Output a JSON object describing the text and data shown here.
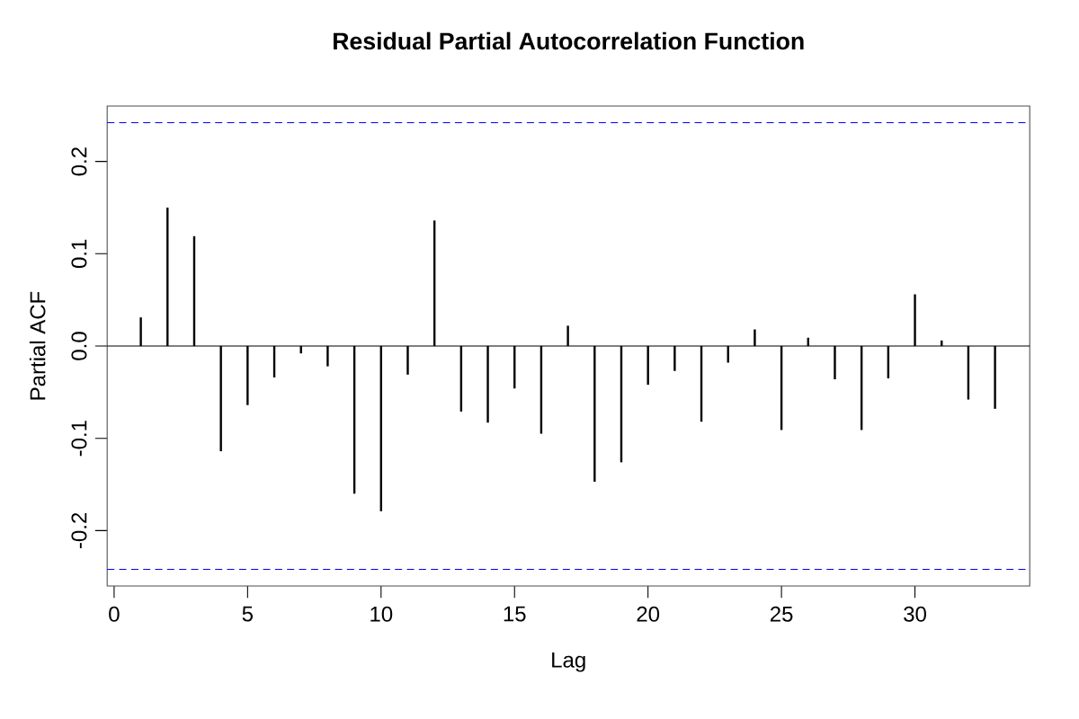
{
  "chart_data": {
    "type": "bar",
    "title": "Residual Partial Autocorrelation Function",
    "xlabel": "Lag",
    "ylabel": "Partial ACF",
    "x": [
      1,
      2,
      3,
      4,
      5,
      6,
      7,
      8,
      9,
      10,
      11,
      12,
      13,
      14,
      15,
      16,
      17,
      18,
      19,
      20,
      21,
      22,
      23,
      24,
      25,
      26,
      27,
      28,
      29,
      30,
      31,
      32,
      33
    ],
    "values": [
      0.031,
      0.15,
      0.119,
      -0.114,
      -0.064,
      -0.034,
      -0.008,
      -0.022,
      -0.16,
      -0.179,
      -0.031,
      0.136,
      -0.071,
      -0.083,
      -0.046,
      -0.095,
      0.022,
      -0.147,
      -0.126,
      -0.042,
      -0.027,
      -0.082,
      -0.018,
      0.018,
      -0.091,
      0.009,
      -0.036,
      -0.091,
      -0.035,
      0.056,
      0.006,
      -0.058,
      -0.068
    ],
    "color": "#000000",
    "xlim": [
      -0.26,
      34.3
    ],
    "ylim": [
      -0.26,
      0.26
    ],
    "xticks": [
      0,
      5,
      10,
      15,
      20,
      25,
      30
    ],
    "yticks": [
      -0.2,
      -0.1,
      {
        "value": 0,
        "label": "0.0"
      },
      0.1,
      0.2
    ],
    "ref_lines": [
      {
        "axis": "y",
        "value": 0,
        "color": "#000000",
        "line_style": "solid"
      },
      {
        "axis": "y",
        "value": 0.242,
        "color": "#0000ff",
        "line_style": "dashed"
      },
      {
        "axis": "y",
        "value": -0.242,
        "color": "#0000ff",
        "line_style": "dashed"
      }
    ],
    "grid": false
  }
}
